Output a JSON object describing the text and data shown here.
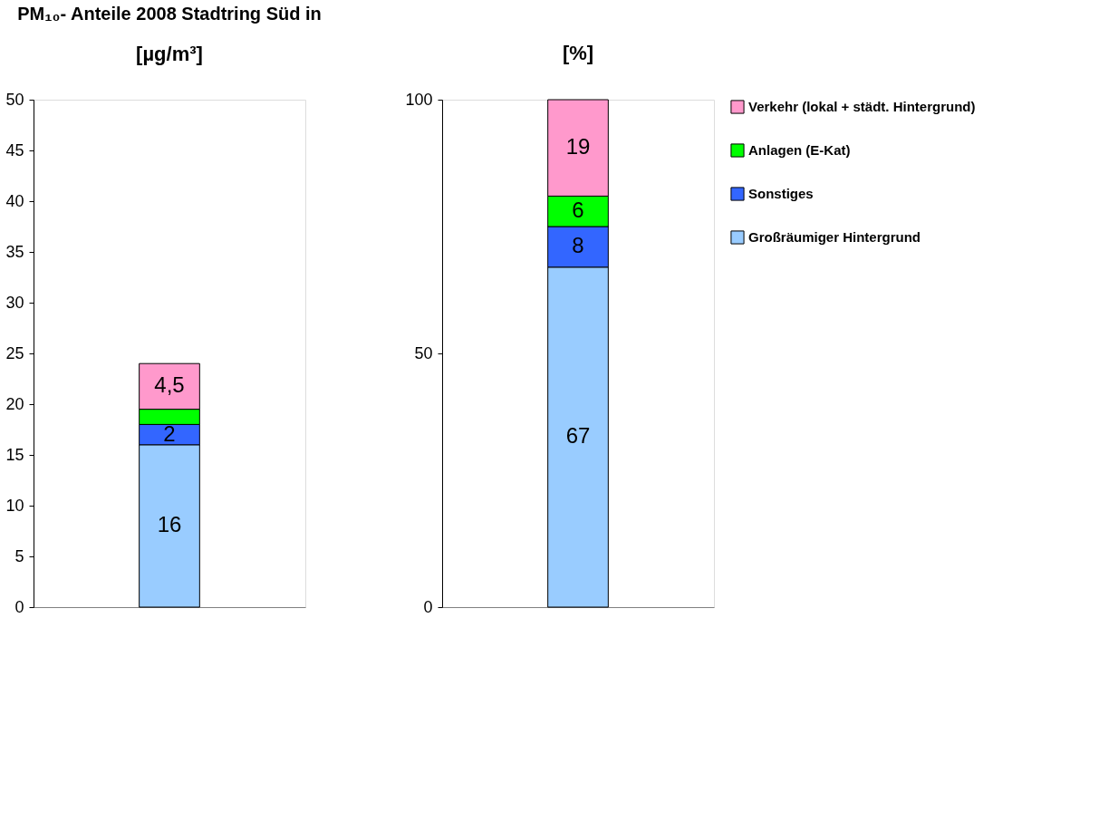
{
  "chart_data": [
    {
      "type": "bar",
      "title": "PM₁₀- Anteile 2008 Stadtring Süd in",
      "subtitle": "[µg/m³]",
      "categories": [
        null
      ],
      "stacked": true,
      "ylim": [
        0,
        50
      ],
      "yticks": [
        0,
        5,
        10,
        15,
        20,
        25,
        30,
        35,
        40,
        45,
        50
      ],
      "grid": false,
      "series": [
        {
          "color": "#99ccff",
          "values": [
            16
          ],
          "value_labels": [
            "16"
          ]
        },
        {
          "color": "#3366ff",
          "values": [
            2
          ],
          "value_labels": [
            "2"
          ]
        },
        {
          "color": "#00ff00",
          "values": [
            1.5
          ],
          "value_labels": [
            null
          ]
        },
        {
          "color": "#ff99cc",
          "values": [
            4.5
          ],
          "value_labels": [
            "4,5"
          ]
        }
      ]
    },
    {
      "type": "bar",
      "subtitle": "[%]",
      "categories": [
        null
      ],
      "stacked": true,
      "ylim": [
        0,
        100
      ],
      "yticks": [
        0,
        50,
        100
      ],
      "grid": false,
      "data_labels": true,
      "legend": "right",
      "series": [
        {
          "name": "Großräumiger Hintergrund",
          "color": "#99ccff",
          "values": [
            67
          ]
        },
        {
          "name": "Sonstiges",
          "color": "#3366ff",
          "values": [
            8
          ]
        },
        {
          "name": "Anlagen (E-Kat)",
          "color": "#00ff00",
          "values": [
            6
          ]
        },
        {
          "name": "Verkehr (lokal + städt. Hintergrund)",
          "color": "#ff99cc",
          "values": [
            19
          ]
        }
      ]
    }
  ]
}
